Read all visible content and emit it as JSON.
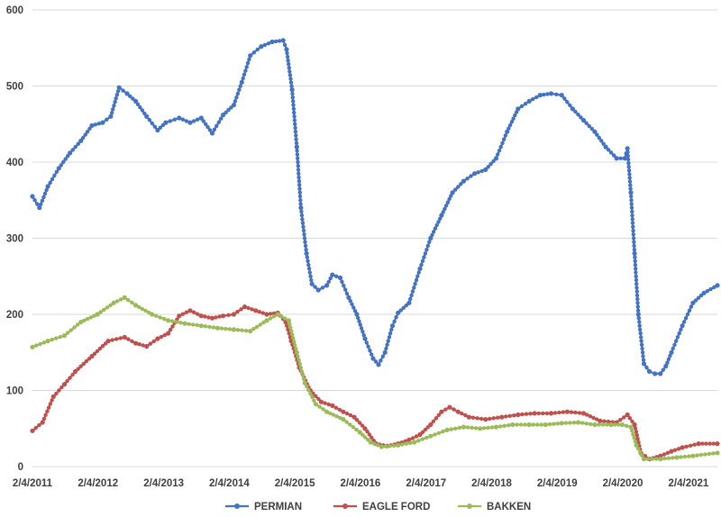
{
  "chart_data": {
    "type": "line",
    "title": "",
    "xlabel": "",
    "ylabel": "",
    "ylim": [
      0,
      600
    ],
    "yticks": [
      "0",
      "100",
      "200",
      "300",
      "400",
      "500",
      "600"
    ],
    "xlim": [
      "2011-02-04",
      "2021-07-15"
    ],
    "xticks": [
      "2/4/2011",
      "2/4/2012",
      "2/4/2013",
      "2/4/2014",
      "2/4/2015",
      "2/4/2016",
      "2/4/2017",
      "2/4/2018",
      "2/4/2019",
      "2/4/2020",
      "2/4/2021"
    ],
    "grid": true,
    "legend_position": "bottom",
    "series": [
      {
        "name": "PERMIAN",
        "color": "#4472c4",
        "points": [
          [
            "2011-02-04",
            355
          ],
          [
            "2011-03-15",
            340
          ],
          [
            "2011-05-01",
            368
          ],
          [
            "2011-07-01",
            392
          ],
          [
            "2011-09-01",
            412
          ],
          [
            "2011-11-01",
            428
          ],
          [
            "2012-01-01",
            448
          ],
          [
            "2012-03-01",
            452
          ],
          [
            "2012-04-15",
            460
          ],
          [
            "2012-06-01",
            498
          ],
          [
            "2012-07-15",
            490
          ],
          [
            "2012-09-01",
            480
          ],
          [
            "2012-11-01",
            460
          ],
          [
            "2013-01-01",
            442
          ],
          [
            "2013-02-15",
            452
          ],
          [
            "2013-05-01",
            458
          ],
          [
            "2013-07-01",
            452
          ],
          [
            "2013-09-01",
            458
          ],
          [
            "2013-11-01",
            438
          ],
          [
            "2014-01-01",
            462
          ],
          [
            "2014-03-01",
            475
          ],
          [
            "2014-04-15",
            505
          ],
          [
            "2014-06-01",
            540
          ],
          [
            "2014-08-01",
            552
          ],
          [
            "2014-10-01",
            558
          ],
          [
            "2014-12-01",
            560
          ],
          [
            "2014-12-20",
            548
          ],
          [
            "2015-01-20",
            495
          ],
          [
            "2015-02-15",
            420
          ],
          [
            "2015-03-10",
            340
          ],
          [
            "2015-04-10",
            280
          ],
          [
            "2015-05-10",
            240
          ],
          [
            "2015-06-15",
            232
          ],
          [
            "2015-08-01",
            238
          ],
          [
            "2015-09-01",
            252
          ],
          [
            "2015-10-15",
            248
          ],
          [
            "2015-12-01",
            222
          ],
          [
            "2016-01-15",
            200
          ],
          [
            "2016-03-01",
            168
          ],
          [
            "2016-04-15",
            142
          ],
          [
            "2016-05-15",
            134
          ],
          [
            "2016-06-20",
            150
          ],
          [
            "2016-08-01",
            185
          ],
          [
            "2016-09-01",
            202
          ],
          [
            "2016-11-01",
            215
          ],
          [
            "2017-01-01",
            260
          ],
          [
            "2017-03-01",
            300
          ],
          [
            "2017-05-01",
            330
          ],
          [
            "2017-07-01",
            360
          ],
          [
            "2017-09-01",
            375
          ],
          [
            "2017-11-01",
            385
          ],
          [
            "2018-01-01",
            390
          ],
          [
            "2018-03-01",
            405
          ],
          [
            "2018-05-01",
            440
          ],
          [
            "2018-07-01",
            470
          ],
          [
            "2018-09-01",
            480
          ],
          [
            "2018-11-01",
            488
          ],
          [
            "2019-01-01",
            490
          ],
          [
            "2019-03-01",
            488
          ],
          [
            "2019-05-01",
            470
          ],
          [
            "2019-07-01",
            455
          ],
          [
            "2019-09-01",
            440
          ],
          [
            "2019-11-01",
            420
          ],
          [
            "2020-01-01",
            405
          ],
          [
            "2020-02-15",
            405
          ],
          [
            "2020-03-01",
            418
          ],
          [
            "2020-03-20",
            360
          ],
          [
            "2020-04-10",
            280
          ],
          [
            "2020-05-01",
            200
          ],
          [
            "2020-06-01",
            135
          ],
          [
            "2020-07-01",
            125
          ],
          [
            "2020-08-01",
            122
          ],
          [
            "2020-09-01",
            122
          ],
          [
            "2020-10-01",
            132
          ],
          [
            "2020-11-01",
            150
          ],
          [
            "2021-01-01",
            185
          ],
          [
            "2021-03-01",
            215
          ],
          [
            "2021-05-01",
            228
          ],
          [
            "2021-07-15",
            238
          ]
        ]
      },
      {
        "name": "EAGLE FORD",
        "color": "#c0504d",
        "points": [
          [
            "2011-02-04",
            47
          ],
          [
            "2011-04-01",
            58
          ],
          [
            "2011-06-01",
            92
          ],
          [
            "2011-08-01",
            108
          ],
          [
            "2011-10-01",
            125
          ],
          [
            "2012-01-01",
            145
          ],
          [
            "2012-04-01",
            165
          ],
          [
            "2012-07-01",
            170
          ],
          [
            "2012-09-01",
            162
          ],
          [
            "2012-11-01",
            158
          ],
          [
            "2013-01-01",
            168
          ],
          [
            "2013-03-01",
            175
          ],
          [
            "2013-05-01",
            198
          ],
          [
            "2013-07-01",
            205
          ],
          [
            "2013-09-01",
            198
          ],
          [
            "2013-11-01",
            195
          ],
          [
            "2014-01-01",
            198
          ],
          [
            "2014-03-01",
            200
          ],
          [
            "2014-05-01",
            210
          ],
          [
            "2014-07-01",
            205
          ],
          [
            "2014-09-01",
            200
          ],
          [
            "2014-11-01",
            202
          ],
          [
            "2014-12-15",
            190
          ],
          [
            "2015-01-15",
            165
          ],
          [
            "2015-03-01",
            130
          ],
          [
            "2015-05-01",
            100
          ],
          [
            "2015-07-01",
            85
          ],
          [
            "2015-09-01",
            80
          ],
          [
            "2015-11-01",
            72
          ],
          [
            "2016-01-01",
            65
          ],
          [
            "2016-03-01",
            50
          ],
          [
            "2016-05-01",
            30
          ],
          [
            "2016-07-01",
            27
          ],
          [
            "2016-09-01",
            30
          ],
          [
            "2016-11-01",
            35
          ],
          [
            "2017-01-01",
            42
          ],
          [
            "2017-03-01",
            55
          ],
          [
            "2017-05-01",
            72
          ],
          [
            "2017-06-15",
            78
          ],
          [
            "2017-08-01",
            72
          ],
          [
            "2017-10-01",
            65
          ],
          [
            "2018-01-01",
            62
          ],
          [
            "2018-04-01",
            65
          ],
          [
            "2018-07-01",
            68
          ],
          [
            "2018-10-01",
            70
          ],
          [
            "2019-01-01",
            70
          ],
          [
            "2019-04-01",
            72
          ],
          [
            "2019-07-01",
            70
          ],
          [
            "2019-10-01",
            60
          ],
          [
            "2020-01-01",
            58
          ],
          [
            "2020-03-01",
            68
          ],
          [
            "2020-04-10",
            55
          ],
          [
            "2020-05-15",
            18
          ],
          [
            "2020-07-01",
            10
          ],
          [
            "2020-09-01",
            14
          ],
          [
            "2020-11-01",
            20
          ],
          [
            "2021-01-01",
            25
          ],
          [
            "2021-04-01",
            30
          ],
          [
            "2021-07-15",
            30
          ]
        ]
      },
      {
        "name": "BAKKEN",
        "color": "#9bbb59",
        "points": [
          [
            "2011-02-04",
            157
          ],
          [
            "2011-05-01",
            165
          ],
          [
            "2011-08-01",
            172
          ],
          [
            "2011-11-01",
            190
          ],
          [
            "2012-02-01",
            200
          ],
          [
            "2012-05-01",
            215
          ],
          [
            "2012-07-01",
            222
          ],
          [
            "2012-09-01",
            212
          ],
          [
            "2012-12-01",
            200
          ],
          [
            "2013-03-01",
            192
          ],
          [
            "2013-06-01",
            188
          ],
          [
            "2013-09-01",
            185
          ],
          [
            "2013-12-01",
            182
          ],
          [
            "2014-03-01",
            180
          ],
          [
            "2014-06-01",
            178
          ],
          [
            "2014-09-01",
            192
          ],
          [
            "2014-11-01",
            200
          ],
          [
            "2015-01-01",
            192
          ],
          [
            "2015-02-15",
            150
          ],
          [
            "2015-04-01",
            110
          ],
          [
            "2015-06-01",
            82
          ],
          [
            "2015-08-01",
            72
          ],
          [
            "2015-11-01",
            62
          ],
          [
            "2016-02-01",
            45
          ],
          [
            "2016-04-01",
            32
          ],
          [
            "2016-06-01",
            26
          ],
          [
            "2016-09-01",
            28
          ],
          [
            "2016-12-01",
            32
          ],
          [
            "2017-03-01",
            40
          ],
          [
            "2017-06-01",
            48
          ],
          [
            "2017-09-01",
            52
          ],
          [
            "2017-12-01",
            50
          ],
          [
            "2018-03-01",
            52
          ],
          [
            "2018-06-01",
            55
          ],
          [
            "2018-09-01",
            55
          ],
          [
            "2018-12-01",
            55
          ],
          [
            "2019-03-01",
            57
          ],
          [
            "2019-06-01",
            58
          ],
          [
            "2019-09-01",
            55
          ],
          [
            "2019-12-01",
            55
          ],
          [
            "2020-02-01",
            55
          ],
          [
            "2020-03-20",
            52
          ],
          [
            "2020-04-20",
            28
          ],
          [
            "2020-06-01",
            10
          ],
          [
            "2020-09-01",
            10
          ],
          [
            "2020-12-01",
            12
          ],
          [
            "2021-03-01",
            14
          ],
          [
            "2021-07-15",
            18
          ]
        ]
      }
    ]
  }
}
